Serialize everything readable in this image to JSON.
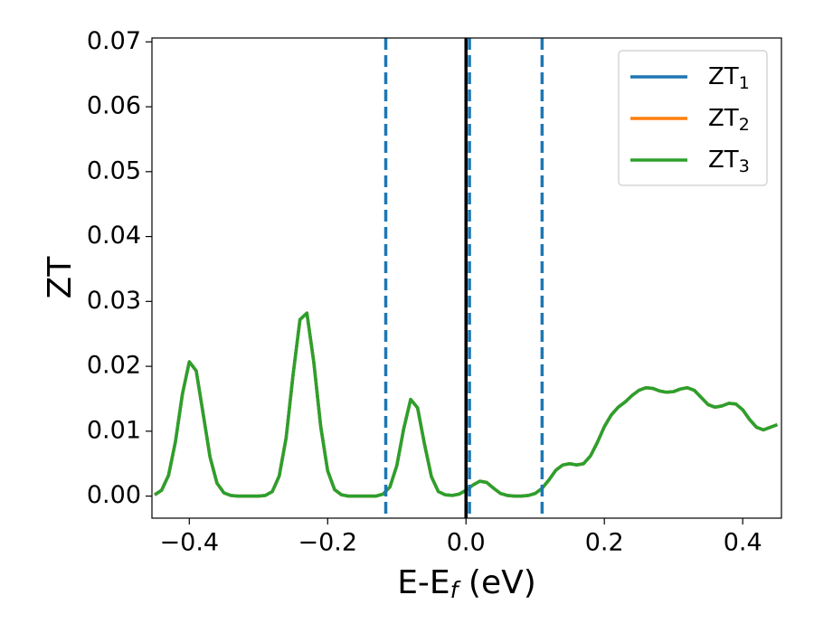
{
  "chart_data": {
    "type": "line",
    "xlabel": {
      "main": "E-E",
      "sub": "f",
      "unit": " (eV)"
    },
    "ylabel": "ZT",
    "x": [
      -0.45,
      -0.44,
      -0.43,
      -0.42,
      -0.41,
      -0.4,
      -0.39,
      -0.38,
      -0.37,
      -0.36,
      -0.35,
      -0.34,
      -0.33,
      -0.32,
      -0.31,
      -0.3,
      -0.29,
      -0.28,
      -0.27,
      -0.26,
      -0.25,
      -0.24,
      -0.23,
      -0.22,
      -0.21,
      -0.2,
      -0.19,
      -0.18,
      -0.17,
      -0.16,
      -0.15,
      -0.14,
      -0.13,
      -0.12,
      -0.11,
      -0.1,
      -0.09,
      -0.08,
      -0.07,
      -0.06,
      -0.05,
      -0.04,
      -0.03,
      -0.02,
      -0.01,
      0.0,
      0.01,
      0.02,
      0.03,
      0.04,
      0.05,
      0.06,
      0.07,
      0.08,
      0.09,
      0.1,
      0.11,
      0.12,
      0.13,
      0.14,
      0.15,
      0.16,
      0.17,
      0.18,
      0.19,
      0.2,
      0.21,
      0.22,
      0.23,
      0.24,
      0.25,
      0.26,
      0.27,
      0.28,
      0.29,
      0.3,
      0.31,
      0.32,
      0.33,
      0.34,
      0.35,
      0.36,
      0.37,
      0.38,
      0.39,
      0.4,
      0.41,
      0.42,
      0.43,
      0.44,
      0.45
    ],
    "series": [
      {
        "name": "ZT1",
        "color": "#1f77b4",
        "values": [
          0.0002,
          0.0009,
          0.0032,
          0.0084,
          0.0157,
          0.0207,
          0.0193,
          0.0127,
          0.006,
          0.002,
          0.0005,
          0.0001,
          0,
          0,
          0,
          0,
          0.0001,
          0.0007,
          0.0031,
          0.009,
          0.0187,
          0.0272,
          0.0282,
          0.0206,
          0.0107,
          0.0039,
          0.001,
          0.0002,
          0,
          0,
          0,
          0,
          0,
          0.0003,
          0.0014,
          0.0047,
          0.0104,
          0.0149,
          0.0136,
          0.008,
          0.003,
          0.0007,
          0.0002,
          0.0001,
          0.0003,
          0.0009,
          0.0017,
          0.0023,
          0.0021,
          0.0012,
          0.0004,
          0.0001,
          0,
          0,
          0.0001,
          0.0004,
          0.0012,
          0.0025,
          0.004,
          0.0048,
          0.005,
          0.0048,
          0.005,
          0.0062,
          0.0083,
          0.0107,
          0.0125,
          0.0137,
          0.0145,
          0.0155,
          0.0163,
          0.0167,
          0.0166,
          0.0162,
          0.016,
          0.0161,
          0.0165,
          0.0167,
          0.0163,
          0.0152,
          0.0141,
          0.0137,
          0.0139,
          0.0143,
          0.0142,
          0.0133,
          0.0118,
          0.0106,
          0.0102,
          0.0106,
          0.011
        ]
      },
      {
        "name": "ZT2",
        "color": "#ff7f0e",
        "values": [
          0.0002,
          0.0009,
          0.0032,
          0.0084,
          0.0157,
          0.0207,
          0.0193,
          0.0127,
          0.006,
          0.002,
          0.0005,
          0.0001,
          0,
          0,
          0,
          0,
          0.0001,
          0.0007,
          0.0031,
          0.009,
          0.0187,
          0.0272,
          0.0282,
          0.0206,
          0.0107,
          0.0039,
          0.001,
          0.0002,
          0,
          0,
          0,
          0,
          0,
          0.0003,
          0.0014,
          0.0047,
          0.0104,
          0.0149,
          0.0136,
          0.008,
          0.003,
          0.0007,
          0.0002,
          0.0001,
          0.0003,
          0.0009,
          0.0017,
          0.0023,
          0.0021,
          0.0012,
          0.0004,
          0.0001,
          0,
          0,
          0.0001,
          0.0004,
          0.0012,
          0.0025,
          0.004,
          0.0048,
          0.005,
          0.0048,
          0.005,
          0.0062,
          0.0083,
          0.0107,
          0.0125,
          0.0137,
          0.0145,
          0.0155,
          0.0163,
          0.0167,
          0.0166,
          0.0162,
          0.016,
          0.0161,
          0.0165,
          0.0167,
          0.0163,
          0.0152,
          0.0141,
          0.0137,
          0.0139,
          0.0143,
          0.0142,
          0.0133,
          0.0118,
          0.0106,
          0.0102,
          0.0106,
          0.011
        ]
      },
      {
        "name": "ZT3",
        "color": "#2ca02c",
        "values": [
          0.0002,
          0.0009,
          0.0032,
          0.0084,
          0.0157,
          0.0207,
          0.0193,
          0.0127,
          0.006,
          0.002,
          0.0005,
          0.0001,
          0,
          0,
          0,
          0,
          0.0001,
          0.0007,
          0.0031,
          0.009,
          0.0187,
          0.0272,
          0.0282,
          0.0206,
          0.0107,
          0.0039,
          0.001,
          0.0002,
          0,
          0,
          0,
          0,
          0,
          0.0003,
          0.0014,
          0.0047,
          0.0104,
          0.0149,
          0.0136,
          0.008,
          0.003,
          0.0007,
          0.0002,
          0.0001,
          0.0003,
          0.0009,
          0.0017,
          0.0023,
          0.0021,
          0.0012,
          0.0004,
          0.0001,
          0,
          0,
          0.0001,
          0.0004,
          0.0012,
          0.0025,
          0.004,
          0.0048,
          0.005,
          0.0048,
          0.005,
          0.0062,
          0.0083,
          0.0107,
          0.0125,
          0.0137,
          0.0145,
          0.0155,
          0.0163,
          0.0167,
          0.0166,
          0.0162,
          0.016,
          0.0161,
          0.0165,
          0.0167,
          0.0163,
          0.0152,
          0.0141,
          0.0137,
          0.0139,
          0.0143,
          0.0142,
          0.0133,
          0.0118,
          0.0106,
          0.0102,
          0.0106,
          0.011
        ]
      }
    ],
    "vlines": [
      {
        "x": 0,
        "color": "#000000",
        "style": "solid"
      },
      {
        "x": -0.116,
        "color": "#1f77b4",
        "style": "dashed"
      },
      {
        "x": 0.005,
        "color": "#1f77b4",
        "style": "dashed"
      },
      {
        "x": 0.11,
        "color": "#1f77b4",
        "style": "dashed"
      }
    ],
    "xlim": [
      -0.454,
      0.456
    ],
    "ylim": [
      -0.0034,
      0.0706
    ],
    "xticks": [
      {
        "value": -0.4,
        "label": "−0.4"
      },
      {
        "value": -0.2,
        "label": "−0.2"
      },
      {
        "value": 0,
        "label": "0.0"
      },
      {
        "value": 0.2,
        "label": "0.2"
      },
      {
        "value": 0.4,
        "label": "0.4"
      }
    ],
    "yticks": [
      {
        "value": 0,
        "label": "0.00"
      },
      {
        "value": 0.01,
        "label": "0.01"
      },
      {
        "value": 0.02,
        "label": "0.02"
      },
      {
        "value": 0.03,
        "label": "0.03"
      },
      {
        "value": 0.04,
        "label": "0.04"
      },
      {
        "value": 0.05,
        "label": "0.05"
      },
      {
        "value": 0.06,
        "label": "0.06"
      },
      {
        "value": 0.07,
        "label": "0.07"
      }
    ],
    "grid": false,
    "legend": "upper-right"
  }
}
